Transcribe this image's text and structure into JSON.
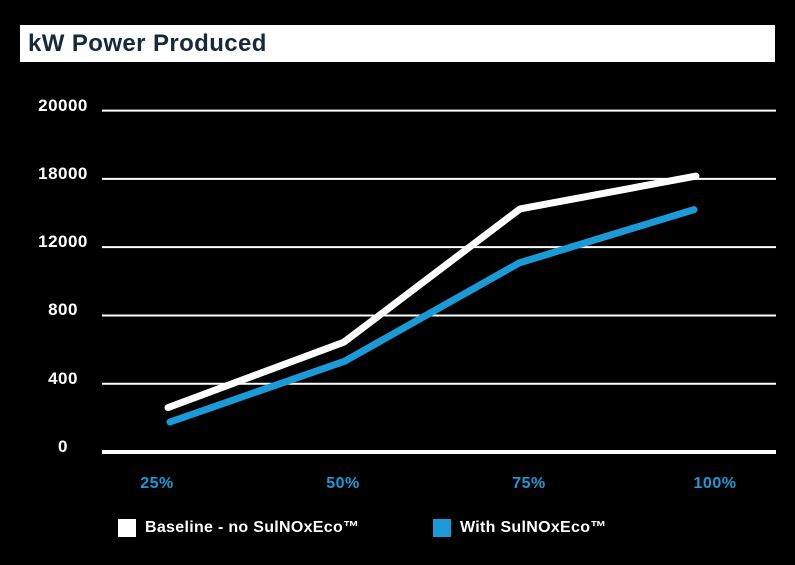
{
  "title": "kW Power Produced",
  "colors": {
    "background": "#000000",
    "title_bar_bg": "#ffffff",
    "title_text": "#16293d",
    "grid_line": "#ffffff",
    "y_label": "#ffffff",
    "x_label": "#1a9bd7",
    "baseline_series": "#ffffff",
    "treated_series": "#1a9bd7",
    "legend_text": "#ffffff"
  },
  "chart_data": {
    "type": "line",
    "title": "kW Power Produced",
    "x_tick_labels": [
      "25%",
      "50%",
      "75%",
      "100%"
    ],
    "y_tick_labels_top_to_bottom": [
      "20000",
      "18000",
      "12000",
      "800",
      "400",
      "0"
    ],
    "grid": "on",
    "legend_position": "bottom",
    "series": [
      {
        "name": "Baseline - no SulNOxEco™",
        "color": "#ffffff",
        "x": [
          "25%",
          "50%",
          "75%",
          "100%"
        ],
        "values_in_gridline_units": [
          0.65,
          1.61,
          3.56,
          4.04
        ],
        "approx_values_kw": [
          2600,
          6450,
          14250,
          16150
        ]
      },
      {
        "name": "With SulNOxEco™",
        "color": "#1a9bd7",
        "x": [
          "25%",
          "50%",
          "75%",
          "100%"
        ],
        "values_in_gridline_units": [
          0.44,
          1.33,
          2.77,
          3.55
        ],
        "approx_values_kw": [
          1750,
          5300,
          11100,
          14200
        ]
      }
    ]
  },
  "legend": {
    "items": [
      {
        "label": "Baseline - no SulNOxEco™",
        "color": "#ffffff"
      },
      {
        "label": "With SulNOxEco™",
        "color": "#1a9bd7"
      }
    ]
  }
}
